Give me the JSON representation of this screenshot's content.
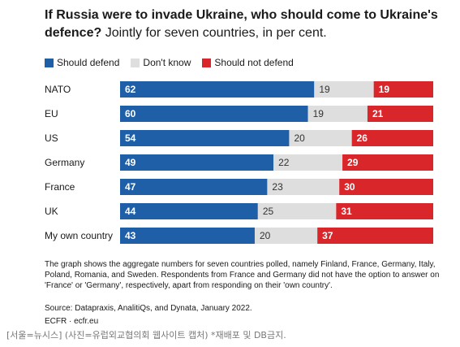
{
  "chart_data": {
    "type": "bar",
    "stacked": true,
    "orientation": "horizontal",
    "title": "If Russia were to invade Ukraine, who should come to Ukraine's defence?",
    "subtitle": "Jointly for seven countries, in per cent.",
    "categories": [
      "NATO",
      "EU",
      "US",
      "Germany",
      "France",
      "UK",
      "My own country"
    ],
    "series": [
      {
        "name": "Should defend",
        "color": "#1f5fa8",
        "values": [
          62,
          60,
          54,
          49,
          47,
          44,
          43
        ]
      },
      {
        "name": "Don't know",
        "color": "#dedede",
        "values": [
          19,
          19,
          20,
          22,
          23,
          25,
          20
        ]
      },
      {
        "name": "Should not defend",
        "color": "#d9262b",
        "values": [
          19,
          21,
          26,
          29,
          30,
          31,
          37
        ]
      }
    ],
    "legend_position": "top-left",
    "grid": false
  },
  "note": "The graph shows the aggregate numbers for seven countries polled, namely Finland, France, Germany, Italy, Poland, Romania, and Sweden. Respondents from France and Germany did not have the option to answer on 'France' or 'Germany', respectively, apart from responding on their 'own country'.",
  "source": "Source: Datapraxis, AnalitiQs, and Dynata, January 2022.",
  "brand": "ECFR · ecfr.eu",
  "caption": "[서울=뉴시스] (사진=유럽외교협의회 웹사이트 캡처) *재배포 및 DB금지."
}
